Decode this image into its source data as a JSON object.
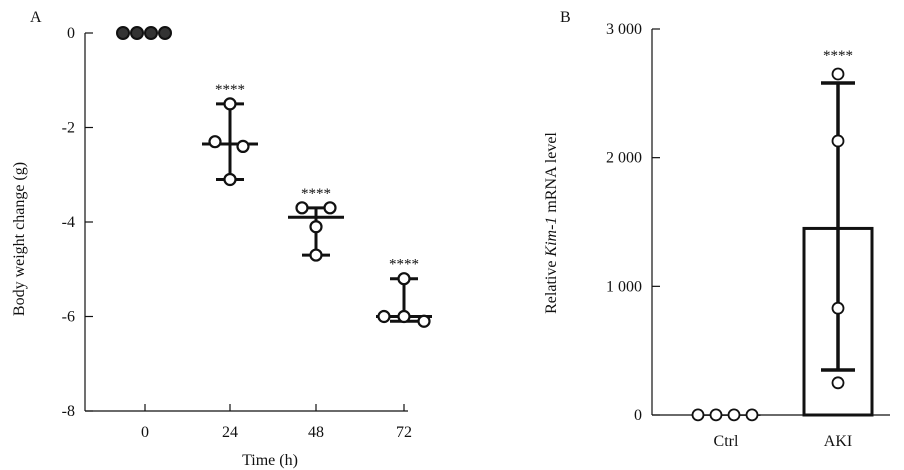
{
  "chart_data": [
    {
      "panel_label": "A",
      "type": "scatter",
      "ylabel": "Body weight change (g)",
      "xlabel": "Time (h)",
      "x_ticks": [
        "0",
        "24",
        "48",
        "72"
      ],
      "y_ticks": [
        "0",
        "-2",
        "-4",
        "-6",
        "-8"
      ],
      "ylim": [
        -8,
        0
      ],
      "groups": [
        {
          "x": "0",
          "points": [
            0,
            0,
            0,
            0
          ],
          "median": 0,
          "range": [
            0,
            0
          ],
          "sig": ""
        },
        {
          "x": "24",
          "points": [
            -1.5,
            -2.3,
            -2.4,
            -3.1
          ],
          "median": -2.35,
          "range": [
            -1.5,
            -3.1
          ],
          "sig": "****"
        },
        {
          "x": "48",
          "points": [
            -3.7,
            -3.7,
            -4.1,
            -4.7
          ],
          "median": -3.9,
          "range": [
            -3.7,
            -4.7
          ],
          "sig": "****"
        },
        {
          "x": "72",
          "points": [
            -5.2,
            -6.0,
            -6.0,
            -6.1
          ],
          "median": -6.0,
          "range": [
            -5.2,
            -6.1
          ],
          "sig": "****"
        }
      ]
    },
    {
      "panel_label": "B",
      "type": "bar",
      "ylabel_pre": "Relative ",
      "ylabel_gene": "Kim-1",
      "ylabel_post": " mRNA level",
      "categories": [
        "Ctrl",
        "AKI"
      ],
      "y_ticks": [
        "0",
        "1 000",
        "2 000",
        "3 000"
      ],
      "ylim": [
        0,
        3000
      ],
      "values": [
        1,
        1450
      ],
      "error": [
        [
          1,
          1
        ],
        [
          350,
          2580
        ]
      ],
      "points": [
        [
          1,
          1,
          1,
          1
        ],
        [
          2650,
          2130,
          830,
          250
        ]
      ],
      "sig": [
        "",
        "****"
      ]
    }
  ]
}
